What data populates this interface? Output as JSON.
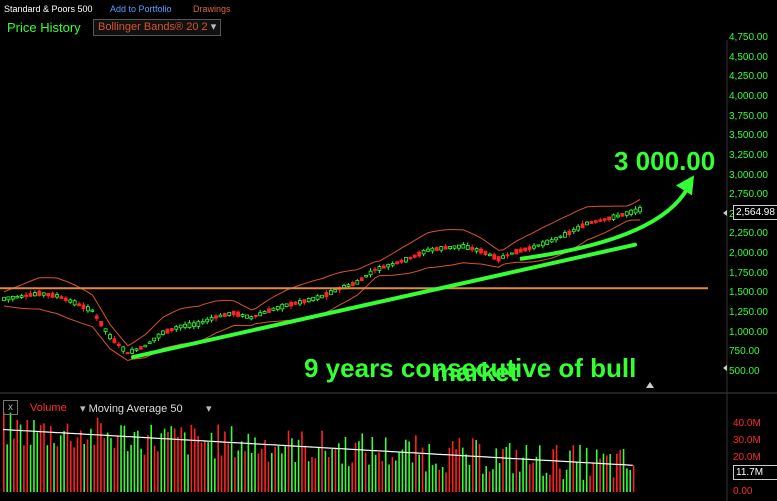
{
  "header": {
    "symbol": "Standard & Poors 500",
    "add_portfolio": "Add to Portfolio",
    "drawings": "Drawings"
  },
  "toolbar": {
    "view_label": "Price History",
    "study_label": "Bollinger Bands® 20 2"
  },
  "annotations": {
    "target": "3 000.00",
    "bull_line1": "9 years consecutive of bull",
    "bull_line2": "market"
  },
  "price_axis": {
    "ticks": [
      "4,750.00",
      "4,500.00",
      "4,250.00",
      "4,000.00",
      "3,750.00",
      "3,500.00",
      "3,250.00",
      "3,000.00",
      "2,750.00",
      "2,500.00",
      "2,250.00",
      "2,000.00",
      "1,750.00",
      "1,500.00",
      "1,250.00",
      "1,000.00",
      "750.00",
      "500.00"
    ],
    "current_value": "2,564.98"
  },
  "volume_panel": {
    "title": "Volume",
    "study": "Moving Average 50",
    "close_glyph": "x",
    "ticks": [
      "40.0M",
      "30.0M",
      "20.0M",
      "10.0M",
      "0.00"
    ],
    "current_value": "11.7M"
  },
  "colors": {
    "up": "#33ff33",
    "down": "#ff2222",
    "band": "#d8542a",
    "support": "#e08a3a",
    "trend": "#33ff33"
  },
  "chart_data": {
    "type": "line",
    "ylim": [
      500,
      4750
    ],
    "price_series_approx": [
      {
        "t": 0,
        "v": 1430
      },
      {
        "t": 4,
        "v": 1460
      },
      {
        "t": 8,
        "v": 1500
      },
      {
        "t": 12,
        "v": 1470
      },
      {
        "t": 16,
        "v": 1380
      },
      {
        "t": 20,
        "v": 1280
      },
      {
        "t": 24,
        "v": 950
      },
      {
        "t": 28,
        "v": 740
      },
      {
        "t": 32,
        "v": 830
      },
      {
        "t": 36,
        "v": 1000
      },
      {
        "t": 40,
        "v": 1080
      },
      {
        "t": 44,
        "v": 1110
      },
      {
        "t": 48,
        "v": 1200
      },
      {
        "t": 52,
        "v": 1250
      },
      {
        "t": 56,
        "v": 1190
      },
      {
        "t": 60,
        "v": 1280
      },
      {
        "t": 64,
        "v": 1350
      },
      {
        "t": 68,
        "v": 1400
      },
      {
        "t": 72,
        "v": 1460
      },
      {
        "t": 76,
        "v": 1560
      },
      {
        "t": 80,
        "v": 1640
      },
      {
        "t": 84,
        "v": 1800
      },
      {
        "t": 88,
        "v": 1870
      },
      {
        "t": 92,
        "v": 1950
      },
      {
        "t": 96,
        "v": 2050
      },
      {
        "t": 100,
        "v": 2080
      },
      {
        "t": 104,
        "v": 2100
      },
      {
        "t": 108,
        "v": 2040
      },
      {
        "t": 112,
        "v": 1940
      },
      {
        "t": 116,
        "v": 2030
      },
      {
        "t": 120,
        "v": 2090
      },
      {
        "t": 124,
        "v": 2170
      },
      {
        "t": 128,
        "v": 2270
      },
      {
        "t": 132,
        "v": 2390
      },
      {
        "t": 136,
        "v": 2440
      },
      {
        "t": 140,
        "v": 2500
      },
      {
        "t": 144,
        "v": 2565
      }
    ],
    "support_level": 1565,
    "trendline": [
      [
        760,
        2000
      ],
      [
        2000,
        2700
      ]
    ],
    "target_arrow_to": 2850,
    "volume_ylim": [
      0,
      45
    ]
  }
}
